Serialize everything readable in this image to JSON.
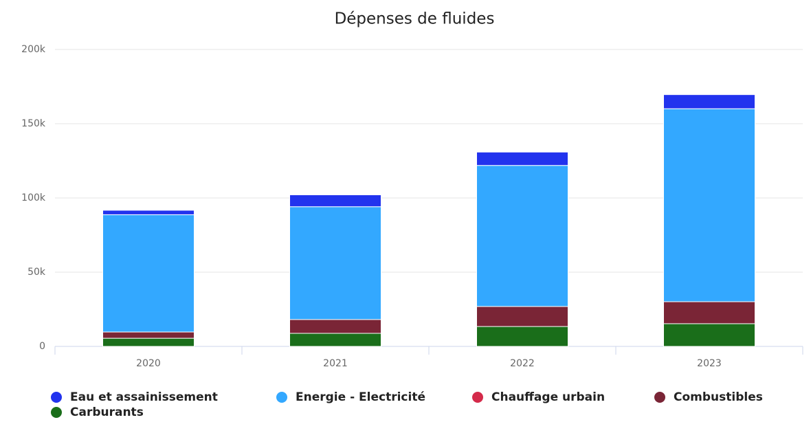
{
  "chart_data": {
    "type": "stacked_bar",
    "title": "Dépenses de fluides",
    "categories": [
      "2020",
      "2021",
      "2022",
      "2023"
    ],
    "series": [
      {
        "name": "Eau et assainissement",
        "color": "#2233ee",
        "values": [
          3000,
          8000,
          9000,
          9500
        ]
      },
      {
        "name": "Energie - Electricité",
        "color": "#33a8ff",
        "values": [
          79000,
          76000,
          95000,
          130000
        ]
      },
      {
        "name": "Chauffage urbain",
        "color": "#d42a4a",
        "values": [
          0,
          0,
          0,
          0
        ]
      },
      {
        "name": "Combustibles",
        "color": "#7a2536",
        "values": [
          4200,
          9300,
          13500,
          14800
        ]
      },
      {
        "name": "Carburants",
        "color": "#1a6e1a",
        "values": [
          5500,
          8800,
          13400,
          15300
        ]
      }
    ],
    "ylim": [
      0,
      200000
    ],
    "yticks": [
      0,
      {
        "value": 50000,
        "label": "50k"
      },
      {
        "value": 100000,
        "label": "100k"
      },
      {
        "value": 150000,
        "label": "150k"
      },
      {
        "value": 200000,
        "label": "200k"
      }
    ],
    "grid": true,
    "legend": "bottom"
  }
}
